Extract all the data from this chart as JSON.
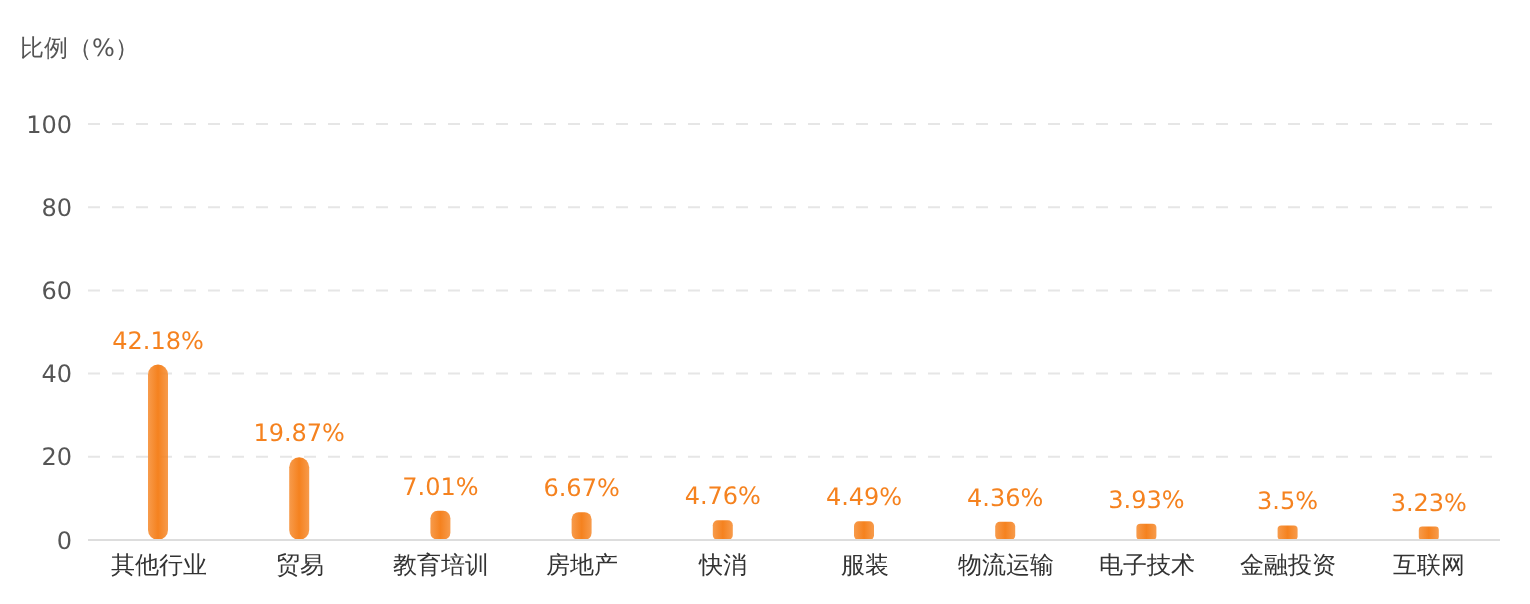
{
  "chart_data": {
    "type": "bar",
    "ylabel": "比例（%）",
    "categories": [
      "其他行业",
      "贸易",
      "教育培训",
      "房地产",
      "快消",
      "服装",
      "物流运输",
      "电子技术",
      "金融投资",
      "互联网"
    ],
    "values": [
      42.18,
      19.87,
      7.01,
      6.67,
      4.76,
      4.49,
      4.36,
      3.93,
      3.5,
      3.23
    ],
    "value_labels": [
      "42.18%",
      "19.87%",
      "7.01%",
      "6.67%",
      "4.76%",
      "4.49%",
      "4.36%",
      "3.93%",
      "3.5%",
      "3.23%"
    ],
    "color": "#f5821f",
    "ylim": [
      0,
      100
    ],
    "yticks": [
      0,
      20,
      40,
      60,
      80,
      100
    ],
    "grid": "y",
    "legend": false
  }
}
